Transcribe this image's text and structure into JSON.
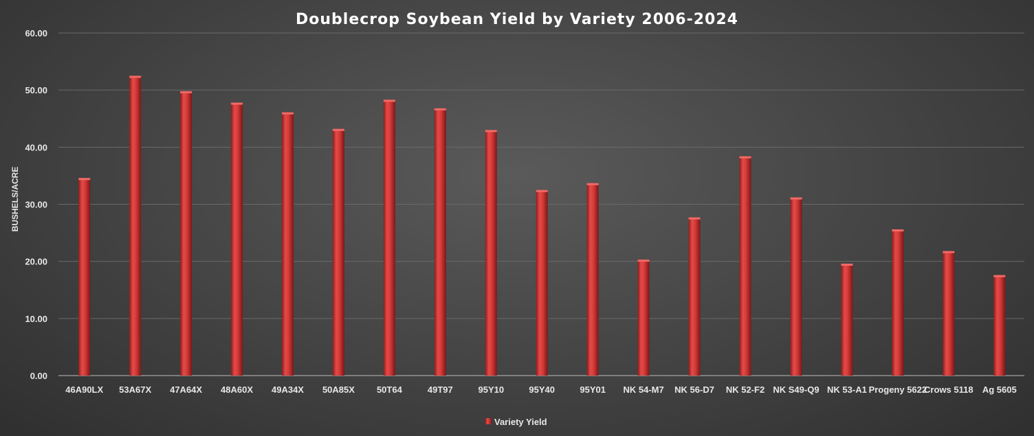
{
  "chart_data": {
    "type": "bar",
    "title": "Doublecrop Soybean Yield by Variety 2006-2024",
    "xlabel": "",
    "ylabel": "BUSHELS/ACRE",
    "ylim": [
      0,
      60
    ],
    "yticks": [
      "0.00",
      "10.00",
      "20.00",
      "30.00",
      "40.00",
      "50.00",
      "60.00"
    ],
    "grid": true,
    "legend_position": "bottom",
    "categories": [
      "46A90LX",
      "53A67X",
      "47A64X",
      "48A60X",
      "49A34X",
      "50A85X",
      "50T64",
      "49T97",
      "95Y10",
      "95Y40",
      "95Y01",
      "NK 54-M7",
      "NK 56-D7",
      "NK 52-F2",
      "NK S49-Q9",
      "NK 53-A1",
      "Progeny 5622",
      "Crows 5118",
      "Ag 5605"
    ],
    "series": [
      {
        "name": "Variety Yield",
        "color": "#d93a3a",
        "values": [
          34.6,
          52.5,
          49.8,
          47.8,
          46.1,
          43.2,
          48.3,
          46.8,
          43.0,
          32.5,
          33.7,
          20.3,
          27.7,
          38.4,
          31.2,
          19.6,
          25.6,
          21.8,
          17.6
        ]
      }
    ]
  }
}
